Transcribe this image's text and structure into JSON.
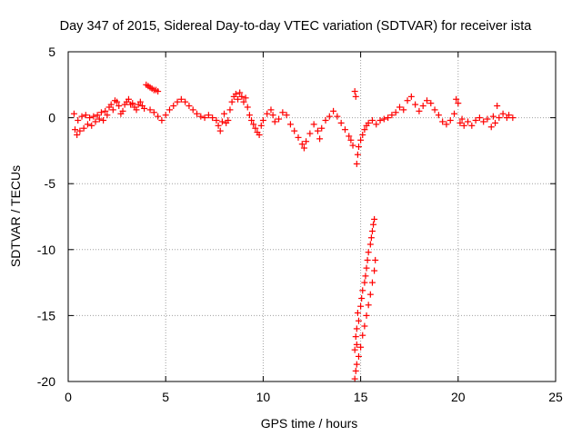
{
  "chart_data": {
    "type": "scatter",
    "title": "Day 347 of 2015, Sidereal Day-to-day VTEC variation (SDTVAR) for receiver ista",
    "xlabel": "GPS time / hours",
    "ylabel": "SDTVAR / TECUs",
    "xlim": [
      0,
      25
    ],
    "ylim": [
      -20,
      5
    ],
    "xticks": [
      0,
      5,
      10,
      15,
      20,
      25
    ],
    "yticks": [
      5,
      0,
      -5,
      -10,
      -15,
      -20
    ],
    "grid": true,
    "marker": "+",
    "color": "#ff0000",
    "series": [
      {
        "name": "SDTVAR",
        "points": [
          [
            0.3,
            0.3
          ],
          [
            0.35,
            -0.9
          ],
          [
            0.45,
            -1.3
          ],
          [
            0.5,
            -0.2
          ],
          [
            0.6,
            -1.0
          ],
          [
            0.7,
            0.1
          ],
          [
            0.8,
            -0.8
          ],
          [
            0.9,
            0.2
          ],
          [
            1.0,
            -0.5
          ],
          [
            1.1,
            0.0
          ],
          [
            1.2,
            -0.6
          ],
          [
            1.3,
            0.1
          ],
          [
            1.4,
            -0.3
          ],
          [
            1.5,
            0.2
          ],
          [
            1.6,
            -0.1
          ],
          [
            1.7,
            0.4
          ],
          [
            1.8,
            -0.2
          ],
          [
            1.9,
            0.5
          ],
          [
            2.0,
            0.2
          ],
          [
            2.1,
            0.8
          ],
          [
            2.2,
            1.0
          ],
          [
            2.3,
            0.6
          ],
          [
            2.4,
            1.3
          ],
          [
            2.5,
            1.2
          ],
          [
            2.6,
            0.9
          ],
          [
            2.7,
            0.3
          ],
          [
            2.8,
            0.5
          ],
          [
            2.9,
            1.0
          ],
          [
            3.0,
            1.2
          ],
          [
            3.1,
            1.4
          ],
          [
            3.2,
            1.0
          ],
          [
            3.3,
            1.1
          ],
          [
            3.4,
            0.8
          ],
          [
            3.5,
            0.6
          ],
          [
            3.6,
            1.0
          ],
          [
            3.7,
            1.2
          ],
          [
            3.8,
            0.9
          ],
          [
            3.9,
            0.7
          ],
          [
            4.0,
            2.5
          ],
          [
            4.1,
            2.4
          ],
          [
            4.2,
            2.3
          ],
          [
            4.3,
            2.2
          ],
          [
            4.4,
            2.1
          ],
          [
            4.5,
            2.1
          ],
          [
            4.6,
            2.0
          ],
          [
            4.2,
            0.6
          ],
          [
            4.4,
            0.4
          ],
          [
            4.6,
            0.1
          ],
          [
            4.8,
            -0.2
          ],
          [
            5.0,
            0.2
          ],
          [
            5.2,
            0.6
          ],
          [
            5.4,
            0.9
          ],
          [
            5.6,
            1.2
          ],
          [
            5.8,
            1.4
          ],
          [
            6.0,
            1.2
          ],
          [
            6.2,
            0.9
          ],
          [
            6.4,
            0.6
          ],
          [
            6.6,
            0.3
          ],
          [
            6.8,
            0.1
          ],
          [
            7.0,
            0.0
          ],
          [
            7.2,
            0.2
          ],
          [
            7.4,
            0.0
          ],
          [
            7.6,
            -0.2
          ],
          [
            7.7,
            -0.6
          ],
          [
            7.8,
            -1.0
          ],
          [
            7.9,
            -0.3
          ],
          [
            8.0,
            0.3
          ],
          [
            8.1,
            -0.4
          ],
          [
            8.2,
            -0.2
          ],
          [
            8.3,
            0.6
          ],
          [
            8.4,
            1.2
          ],
          [
            8.5,
            1.6
          ],
          [
            8.6,
            1.8
          ],
          [
            8.7,
            1.4
          ],
          [
            8.8,
            1.9
          ],
          [
            8.9,
            1.6
          ],
          [
            9.0,
            1.2
          ],
          [
            9.1,
            1.5
          ],
          [
            9.2,
            0.8
          ],
          [
            9.3,
            0.2
          ],
          [
            9.4,
            -0.2
          ],
          [
            9.5,
            -0.5
          ],
          [
            9.6,
            -0.8
          ],
          [
            9.7,
            -1.1
          ],
          [
            9.8,
            -1.3
          ],
          [
            9.9,
            -0.6
          ],
          [
            10.0,
            -0.2
          ],
          [
            10.2,
            0.3
          ],
          [
            10.4,
            0.6
          ],
          [
            10.5,
            0.2
          ],
          [
            10.6,
            -0.3
          ],
          [
            10.8,
            -0.1
          ],
          [
            11.0,
            0.4
          ],
          [
            11.2,
            0.2
          ],
          [
            11.4,
            -0.5
          ],
          [
            11.6,
            -1.0
          ],
          [
            11.8,
            -1.5
          ],
          [
            12.0,
            -2.0
          ],
          [
            12.1,
            -2.3
          ],
          [
            12.2,
            -1.8
          ],
          [
            12.4,
            -1.2
          ],
          [
            12.6,
            -0.5
          ],
          [
            12.8,
            -1.0
          ],
          [
            12.9,
            -1.6
          ],
          [
            13.0,
            -0.8
          ],
          [
            13.2,
            -0.2
          ],
          [
            13.4,
            0.1
          ],
          [
            13.6,
            0.5
          ],
          [
            13.8,
            0.1
          ],
          [
            14.0,
            -0.4
          ],
          [
            14.2,
            -0.9
          ],
          [
            14.4,
            -1.4
          ],
          [
            14.5,
            -1.7
          ],
          [
            14.6,
            -2.1
          ],
          [
            14.7,
            2.0
          ],
          [
            14.75,
            1.6
          ],
          [
            14.8,
            -3.5
          ],
          [
            14.85,
            -2.8
          ],
          [
            14.9,
            -2.2
          ],
          [
            15.0,
            -1.7
          ],
          [
            15.1,
            -1.3
          ],
          [
            15.2,
            -0.9
          ],
          [
            15.3,
            -0.6
          ],
          [
            15.4,
            -0.4
          ],
          [
            14.7,
            -19.8
          ],
          [
            14.75,
            -19.2
          ],
          [
            14.8,
            -18.7
          ],
          [
            14.7,
            -17.6
          ],
          [
            14.8,
            -17.2
          ],
          [
            14.75,
            -16.6
          ],
          [
            14.8,
            -16.0
          ],
          [
            14.9,
            -15.4
          ],
          [
            14.85,
            -14.8
          ],
          [
            15.0,
            -14.3
          ],
          [
            15.05,
            -13.7
          ],
          [
            15.1,
            -13.1
          ],
          [
            15.2,
            -12.5
          ],
          [
            15.25,
            -12.0
          ],
          [
            15.3,
            -11.4
          ],
          [
            15.35,
            -10.8
          ],
          [
            15.4,
            -10.2
          ],
          [
            15.5,
            -9.6
          ],
          [
            15.55,
            -9.1
          ],
          [
            15.6,
            -8.6
          ],
          [
            15.65,
            -8.1
          ],
          [
            15.7,
            -7.7
          ],
          [
            15.1,
            -16.5
          ],
          [
            15.2,
            -15.8
          ],
          [
            15.3,
            -15.0
          ],
          [
            15.4,
            -14.2
          ],
          [
            15.5,
            -13.4
          ],
          [
            15.6,
            -12.5
          ],
          [
            15.7,
            -11.6
          ],
          [
            15.75,
            -10.8
          ],
          [
            14.9,
            -18.1
          ],
          [
            15.0,
            -17.4
          ],
          [
            15.6,
            -0.2
          ],
          [
            15.8,
            -0.5
          ],
          [
            16.0,
            -0.2
          ],
          [
            16.2,
            -0.1
          ],
          [
            16.4,
            0.0
          ],
          [
            16.6,
            0.2
          ],
          [
            16.8,
            0.4
          ],
          [
            17.0,
            0.8
          ],
          [
            17.2,
            0.6
          ],
          [
            17.4,
            1.3
          ],
          [
            17.6,
            1.6
          ],
          [
            17.8,
            1.0
          ],
          [
            18.0,
            0.5
          ],
          [
            18.2,
            0.9
          ],
          [
            18.4,
            1.3
          ],
          [
            18.6,
            1.1
          ],
          [
            18.8,
            0.6
          ],
          [
            19.0,
            0.2
          ],
          [
            19.2,
            -0.3
          ],
          [
            19.4,
            -0.5
          ],
          [
            19.6,
            -0.2
          ],
          [
            19.8,
            0.3
          ],
          [
            19.9,
            1.4
          ],
          [
            20.0,
            1.1
          ],
          [
            20.1,
            -0.4
          ],
          [
            20.2,
            -0.1
          ],
          [
            20.3,
            -0.6
          ],
          [
            20.5,
            -0.3
          ],
          [
            20.7,
            -0.6
          ],
          [
            20.9,
            -0.2
          ],
          [
            21.1,
            0.0
          ],
          [
            21.3,
            -0.3
          ],
          [
            21.5,
            -0.1
          ],
          [
            21.7,
            -0.7
          ],
          [
            21.8,
            0.1
          ],
          [
            21.9,
            -0.4
          ],
          [
            22.0,
            0.9
          ],
          [
            22.1,
            0.0
          ],
          [
            22.3,
            0.3
          ],
          [
            22.5,
            0.0
          ],
          [
            22.6,
            0.2
          ],
          [
            22.8,
            0.0
          ]
        ]
      }
    ]
  }
}
